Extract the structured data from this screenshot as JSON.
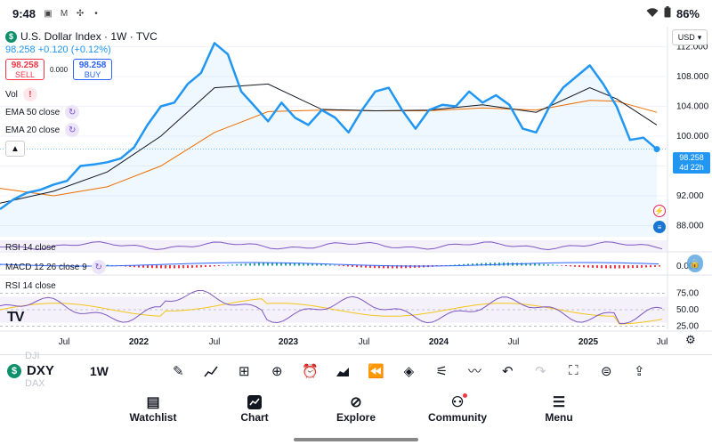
{
  "status_bar": {
    "time": "9:48",
    "battery": "86%",
    "icons": [
      "message-icon",
      "gmail-icon",
      "pinwheel-icon",
      "dot-icon"
    ],
    "right_icons": [
      "wifi-icon",
      "battery-icon"
    ]
  },
  "header": {
    "title": "U.S. Dollar Index · 1W · TVC",
    "price": "98.258",
    "change": "+0.120 (+0.12%)",
    "sell_price": "98.258",
    "sell_label": "SELL",
    "spread": "0.000",
    "buy_price": "98.258",
    "buy_label": "BUY",
    "currency": "USD"
  },
  "indicators": {
    "vol": "Vol",
    "ema50": "EMA 50 close",
    "ema20": "EMA 20 close",
    "rsi_top": "RSI 14 close",
    "macd": "MACD 12 26 close 9",
    "rsi_bottom": "RSI 14 close"
  },
  "price_tag": {
    "price": "98.258",
    "countdown": "4d 22h"
  },
  "colors": {
    "price_line": "#2196f3",
    "ema20": "#131722",
    "ema50": "#ef6c00",
    "rsi": "#7e57c2",
    "rsi_ma": "#f5c518",
    "macd_pos": "#26a69a",
    "macd_neg": "#f23645"
  },
  "chart_data": {
    "type": "line",
    "title": "U.S. Dollar Index · 1W · TVC",
    "x_ticks": [
      "Jul",
      "2022",
      "Jul",
      "2023",
      "Jul",
      "2024",
      "Jul",
      "2025",
      "Jul"
    ],
    "y_ticks": [
      "112.000",
      "108.000",
      "104.000",
      "100.000",
      "96.000",
      "92.000",
      "88.000"
    ],
    "ylim": [
      86.5,
      113.5
    ],
    "rsi_ticks": [
      "75.00",
      "50.00",
      "25.00"
    ],
    "rsi_ylim": [
      20,
      80
    ],
    "series": [
      {
        "name": "U.S. Dollar Index",
        "x": [
          "2021-05",
          "2021-06",
          "2021-07",
          "2021-08",
          "2021-09",
          "2021-10",
          "2021-11",
          "2021-12",
          "2022-01",
          "2022-02",
          "2022-03",
          "2022-04",
          "2022-05",
          "2022-06",
          "2022-07",
          "2022-08",
          "2022-09",
          "2022-10",
          "2022-11",
          "2022-12",
          "2023-01",
          "2023-02",
          "2023-03",
          "2023-04",
          "2023-05",
          "2023-06",
          "2023-07",
          "2023-08",
          "2023-09",
          "2023-10",
          "2023-11",
          "2023-12",
          "2024-01",
          "2024-02",
          "2024-03",
          "2024-04",
          "2024-05",
          "2024-06",
          "2024-07",
          "2024-08",
          "2024-09",
          "2024-10",
          "2024-11",
          "2024-12",
          "2025-01",
          "2025-02",
          "2025-03",
          "2025-04",
          "2025-05",
          "2025-06"
        ],
        "values": [
          90.2,
          91.5,
          92.4,
          92.8,
          93.5,
          94.0,
          96.0,
          96.2,
          96.5,
          97.0,
          98.5,
          101.5,
          104.0,
          104.5,
          107.0,
          108.5,
          112.5,
          111.0,
          106.0,
          104.0,
          102.0,
          104.5,
          102.5,
          101.5,
          103.5,
          102.5,
          100.5,
          103.5,
          106.0,
          106.5,
          103.5,
          101.0,
          103.5,
          104.2,
          104.0,
          106.0,
          104.5,
          105.5,
          104.2,
          101.0,
          100.5,
          104.0,
          106.5,
          108.0,
          109.5,
          107.0,
          104.0,
          99.5,
          99.8,
          98.258
        ]
      },
      {
        "name": "EMA 20 close",
        "x": [
          "2021-05",
          "2021-09",
          "2022-01",
          "2022-05",
          "2022-09",
          "2023-01",
          "2023-05",
          "2023-09",
          "2024-01",
          "2024-05",
          "2024-09",
          "2025-01",
          "2025-03",
          "2025-06"
        ],
        "values": [
          91.0,
          92.6,
          95.2,
          100.0,
          106.5,
          107.0,
          103.6,
          103.4,
          103.5,
          104.2,
          103.2,
          106.5,
          105.0,
          101.5
        ]
      },
      {
        "name": "EMA 50 close",
        "x": [
          "2021-05",
          "2021-09",
          "2022-01",
          "2022-05",
          "2022-09",
          "2023-01",
          "2023-05",
          "2023-09",
          "2024-01",
          "2024-05",
          "2024-09",
          "2025-01",
          "2025-03",
          "2025-06"
        ],
        "values": [
          93.0,
          92.0,
          93.2,
          96.0,
          100.5,
          103.3,
          103.5,
          103.4,
          103.4,
          103.8,
          103.5,
          104.8,
          104.7,
          103.2
        ]
      }
    ]
  },
  "toolbar": {
    "symbol": "DXY",
    "ghost_top": "DJI",
    "ghost_bottom": "DAX",
    "interval": "1W",
    "tools": [
      "draw-pen-icon",
      "indicators-icon",
      "grid-layout-icon",
      "add-icon",
      "alert-clock-icon",
      "chart-type-icon",
      "replay-icon",
      "layers-icon",
      "settings-sliders-icon",
      "compare-icon",
      "undo-icon",
      "redo-icon",
      "fullscreen-icon",
      "idea-icon",
      "share-icon"
    ]
  },
  "bottom_nav": [
    {
      "label": "Watchlist",
      "icon": "watchlist-icon"
    },
    {
      "label": "Chart",
      "icon": "chart-icon"
    },
    {
      "label": "Explore",
      "icon": "compass-icon"
    },
    {
      "label": "Community",
      "icon": "community-icon"
    },
    {
      "label": "Menu",
      "icon": "menu-icon"
    }
  ]
}
